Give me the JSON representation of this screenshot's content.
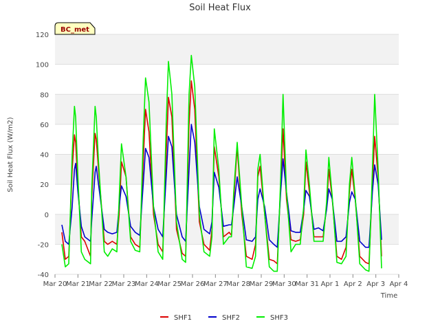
{
  "chart_data": {
    "type": "line",
    "title": "Soil Heat Flux",
    "xlabel": "Time",
    "ylabel": "Soil Heat Flux (W/m2)",
    "site_badge": "BC_met",
    "ylim": [
      -40,
      120
    ],
    "xlim": [
      0,
      15
    ],
    "yticks": [
      -40,
      -20,
      0,
      20,
      40,
      60,
      80,
      100,
      120
    ],
    "xticks": [
      {
        "x": 0,
        "label": "Mar 20"
      },
      {
        "x": 1,
        "label": "Mar 21"
      },
      {
        "x": 2,
        "label": "Mar 22"
      },
      {
        "x": 3,
        "label": "Mar 23"
      },
      {
        "x": 4,
        "label": "Mar 24"
      },
      {
        "x": 5,
        "label": "Mar 25"
      },
      {
        "x": 6,
        "label": "Mar 26"
      },
      {
        "x": 7,
        "label": "Mar 27"
      },
      {
        "x": 8,
        "label": "Mar 28"
      },
      {
        "x": 9,
        "label": "Mar 29"
      },
      {
        "x": 10,
        "label": "Mar 30"
      },
      {
        "x": 11,
        "label": "Mar 31"
      },
      {
        "x": 12,
        "label": "Apr 1"
      },
      {
        "x": 13,
        "label": "Apr 2"
      },
      {
        "x": 14,
        "label": "Apr 3"
      },
      {
        "x": 15,
        "label": "Apr 4"
      }
    ],
    "series": [
      {
        "name": "SHF1",
        "color": "#dd0000",
        "x": [
          0.3,
          0.45,
          0.6,
          0.75,
          0.85,
          0.9,
          1.0,
          1.15,
          1.3,
          1.55,
          1.6,
          1.75,
          1.8,
          1.9,
          2.15,
          2.3,
          2.5,
          2.7,
          2.8,
          2.9,
          3.1,
          3.3,
          3.5,
          3.7,
          3.85,
          3.95,
          4.1,
          4.3,
          4.5,
          4.7,
          4.85,
          4.95,
          5.1,
          5.3,
          5.55,
          5.7,
          5.85,
          5.95,
          6.1,
          6.3,
          6.5,
          6.75,
          6.85,
          6.95,
          7.15,
          7.35,
          7.6,
          7.7,
          7.8,
          7.95,
          8.15,
          8.35,
          8.6,
          8.75,
          8.85,
          8.95,
          9.15,
          9.35,
          9.55,
          9.7,
          9.85,
          9.95,
          10.1,
          10.3,
          10.5,
          10.7,
          10.85,
          10.95,
          11.1,
          11.3,
          11.5,
          11.7,
          11.85,
          11.95,
          12.1,
          12.3,
          12.5,
          12.7,
          12.85,
          12.95,
          13.1,
          13.3,
          13.55,
          13.7,
          13.85,
          13.95,
          14.1,
          14.25
        ],
        "y": [
          -12,
          -30,
          -28,
          30,
          53,
          48,
          20,
          -15,
          -18,
          -28,
          10,
          54,
          50,
          30,
          -18,
          -20,
          -18,
          -20,
          0,
          35,
          25,
          -15,
          -20,
          -22,
          35,
          70,
          55,
          0,
          -20,
          -25,
          40,
          78,
          65,
          -10,
          -26,
          -28,
          60,
          89,
          70,
          -5,
          -20,
          -24,
          -10,
          45,
          25,
          -15,
          -12,
          -14,
          10,
          45,
          0,
          -28,
          -30,
          -20,
          25,
          32,
          0,
          -30,
          -31,
          -33,
          20,
          57,
          10,
          -17,
          -18,
          -17,
          0,
          35,
          15,
          -15,
          -15,
          -15,
          5,
          30,
          10,
          -28,
          -30,
          -22,
          15,
          30,
          10,
          -28,
          -32,
          -33,
          20,
          52,
          25,
          -28
        ]
      },
      {
        "name": "SHF2",
        "color": "#0000cc",
        "x": [
          0.3,
          0.45,
          0.6,
          0.75,
          0.85,
          0.9,
          1.0,
          1.15,
          1.3,
          1.55,
          1.6,
          1.75,
          1.8,
          1.9,
          2.15,
          2.3,
          2.5,
          2.7,
          2.8,
          2.9,
          3.1,
          3.3,
          3.5,
          3.7,
          3.85,
          3.95,
          4.1,
          4.3,
          4.5,
          4.7,
          4.85,
          4.95,
          5.1,
          5.3,
          5.55,
          5.7,
          5.85,
          5.95,
          6.1,
          6.3,
          6.5,
          6.75,
          6.85,
          6.95,
          7.15,
          7.35,
          7.6,
          7.7,
          7.8,
          7.95,
          8.15,
          8.35,
          8.6,
          8.75,
          8.85,
          8.95,
          9.15,
          9.35,
          9.55,
          9.7,
          9.85,
          9.95,
          10.1,
          10.3,
          10.5,
          10.7,
          10.85,
          10.95,
          11.1,
          11.3,
          11.5,
          11.7,
          11.85,
          11.95,
          12.1,
          12.3,
          12.5,
          12.7,
          12.85,
          12.95,
          13.1,
          13.3,
          13.55,
          13.7,
          13.85,
          13.95,
          14.1,
          14.25
        ],
        "y": [
          -7,
          -18,
          -20,
          5,
          30,
          34,
          15,
          -8,
          -15,
          -18,
          -5,
          28,
          32,
          20,
          -10,
          -12,
          -13,
          -12,
          5,
          19,
          12,
          -8,
          -12,
          -14,
          20,
          44,
          38,
          5,
          -10,
          -15,
          25,
          52,
          45,
          0,
          -15,
          -18,
          30,
          60,
          48,
          5,
          -10,
          -13,
          -5,
          28,
          18,
          -8,
          -7,
          -7,
          5,
          25,
          5,
          -17,
          -18,
          -15,
          10,
          17,
          5,
          -17,
          -20,
          -22,
          15,
          37,
          15,
          -11,
          -12,
          -12,
          3,
          16,
          12,
          -10,
          -9,
          -11,
          3,
          17,
          10,
          -18,
          -18,
          -15,
          8,
          15,
          10,
          -18,
          -22,
          -22,
          15,
          33,
          20,
          -17
        ]
      },
      {
        "name": "SHF3",
        "color": "#00ee00",
        "x": [
          0.3,
          0.45,
          0.6,
          0.75,
          0.85,
          0.9,
          1.0,
          1.15,
          1.3,
          1.55,
          1.6,
          1.75,
          1.8,
          1.9,
          2.15,
          2.3,
          2.5,
          2.7,
          2.8,
          2.9,
          3.1,
          3.3,
          3.5,
          3.7,
          3.85,
          3.95,
          4.1,
          4.3,
          4.5,
          4.7,
          4.85,
          4.95,
          5.1,
          5.3,
          5.55,
          5.7,
          5.85,
          5.95,
          6.1,
          6.3,
          6.5,
          6.75,
          6.85,
          6.95,
          7.15,
          7.35,
          7.6,
          7.7,
          7.8,
          7.95,
          8.15,
          8.35,
          8.6,
          8.75,
          8.85,
          8.95,
          9.15,
          9.35,
          9.55,
          9.7,
          9.85,
          9.95,
          10.1,
          10.3,
          10.5,
          10.7,
          10.85,
          10.95,
          11.1,
          11.3,
          11.5,
          11.7,
          11.85,
          11.95,
          12.1,
          12.3,
          12.5,
          12.7,
          12.85,
          12.95,
          13.1,
          13.3,
          13.55,
          13.7,
          13.85,
          13.95,
          14.1,
          14.25
        ],
        "y": [
          -20,
          -35,
          -33,
          40,
          72,
          65,
          25,
          -25,
          -30,
          -33,
          15,
          72,
          65,
          35,
          -25,
          -28,
          -23,
          -25,
          10,
          47,
          25,
          -18,
          -24,
          -25,
          50,
          91,
          75,
          5,
          -25,
          -30,
          60,
          102,
          80,
          -5,
          -30,
          -32,
          80,
          106,
          85,
          0,
          -25,
          -28,
          -15,
          57,
          30,
          -20,
          -15,
          -15,
          15,
          48,
          5,
          -35,
          -36,
          -28,
          30,
          40,
          0,
          -35,
          -38,
          -38,
          25,
          80,
          15,
          -25,
          -20,
          -20,
          5,
          43,
          20,
          -18,
          -18,
          -18,
          8,
          38,
          12,
          -32,
          -33,
          -28,
          20,
          38,
          12,
          -33,
          -37,
          -38,
          30,
          80,
          30,
          -36
        ]
      }
    ]
  }
}
